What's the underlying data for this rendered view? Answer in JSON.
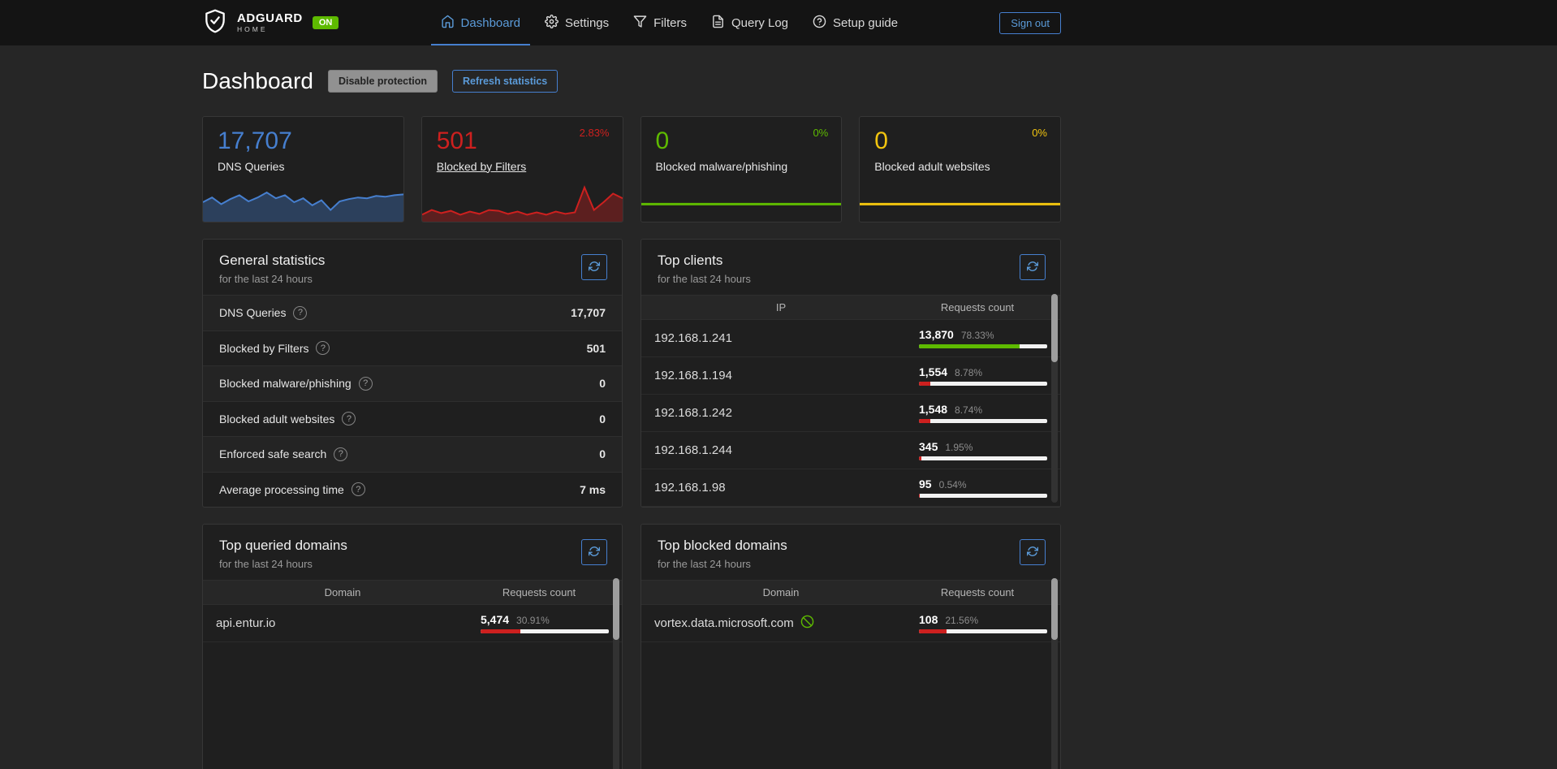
{
  "colors": {
    "blue": "#467fcf",
    "red": "#cd201f",
    "green": "#5eba00",
    "yellow": "#f1c40f"
  },
  "navbar": {
    "brand_name": "ADGUARD",
    "brand_sub": "HOME",
    "status_badge": "ON",
    "items": [
      {
        "label": "Dashboard"
      },
      {
        "label": "Settings"
      },
      {
        "label": "Filters"
      },
      {
        "label": "Query Log"
      },
      {
        "label": "Setup guide"
      }
    ],
    "signout_label": "Sign out"
  },
  "header": {
    "title": "Dashboard",
    "disable_protection_label": "Disable protection",
    "refresh_statistics_label": "Refresh statistics"
  },
  "stat_cards": [
    {
      "value": "17,707",
      "label": "DNS Queries",
      "percent": "",
      "color": "#467fcf",
      "spark": {
        "color": "#467fcf",
        "fill": true,
        "stroke": 2,
        "points": [
          0.5,
          0.62,
          0.45,
          0.58,
          0.68,
          0.52,
          0.62,
          0.75,
          0.6,
          0.68,
          0.5,
          0.6,
          0.42,
          0.55,
          0.3,
          0.52,
          0.58,
          0.62,
          0.6,
          0.66,
          0.64,
          0.68,
          0.7
        ]
      }
    },
    {
      "value": "501",
      "label": "Blocked by Filters",
      "percent": "2.83%",
      "color": "#cd201f",
      "spark": {
        "color": "#cd201f",
        "fill": true,
        "stroke": 2,
        "points": [
          0.18,
          0.3,
          0.22,
          0.28,
          0.18,
          0.26,
          0.2,
          0.3,
          0.28,
          0.2,
          0.26,
          0.18,
          0.24,
          0.18,
          0.26,
          0.2,
          0.24,
          0.88,
          0.3,
          0.5,
          0.72,
          0.6
        ]
      }
    },
    {
      "value": "0",
      "label": "Blocked malware/phishing",
      "percent": "0%",
      "color": "#5eba00",
      "spark": {
        "color": "#5eba00",
        "fill": false,
        "stroke": 3,
        "points": [
          0.45,
          0.45
        ]
      }
    },
    {
      "value": "0",
      "label": "Blocked adult websites",
      "percent": "0%",
      "color": "#f1c40f",
      "spark": {
        "color": "#f1c40f",
        "fill": false,
        "stroke": 3,
        "points": [
          0.45,
          0.45
        ]
      }
    }
  ],
  "general": {
    "title": "General statistics",
    "subtitle": "for the last 24 hours",
    "rows": [
      {
        "label": "DNS Queries",
        "value": "17,707"
      },
      {
        "label": "Blocked by Filters",
        "value": "501"
      },
      {
        "label": "Blocked malware/phishing",
        "value": "0"
      },
      {
        "label": "Blocked adult websites",
        "value": "0"
      },
      {
        "label": "Enforced safe search",
        "value": "0"
      },
      {
        "label": "Average processing time",
        "value": "7 ms"
      }
    ]
  },
  "top_clients": {
    "title": "Top clients",
    "subtitle": "for the last 24 hours",
    "columns": {
      "ip": "IP",
      "count": "Requests count"
    },
    "rows": [
      {
        "ip": "192.168.1.241",
        "count": "13,870",
        "percent": "78.33%",
        "pct": 78.33,
        "bar_color": "#5eba00"
      },
      {
        "ip": "192.168.1.194",
        "count": "1,554",
        "percent": "8.78%",
        "pct": 8.78,
        "bar_color": "#cd201f"
      },
      {
        "ip": "192.168.1.242",
        "count": "1,548",
        "percent": "8.74%",
        "pct": 8.74,
        "bar_color": "#cd201f"
      },
      {
        "ip": "192.168.1.244",
        "count": "345",
        "percent": "1.95%",
        "pct": 1.95,
        "bar_color": "#cd201f"
      },
      {
        "ip": "192.168.1.98",
        "count": "95",
        "percent": "0.54%",
        "pct": 0.54,
        "bar_color": "#cd201f"
      }
    ]
  },
  "top_queried": {
    "title": "Top queried domains",
    "subtitle": "for the last 24 hours",
    "columns": {
      "domain": "Domain",
      "count": "Requests count"
    },
    "rows": [
      {
        "domain": "api.entur.io",
        "count": "5,474",
        "percent": "30.91%",
        "pct": 30.91,
        "bar_color": "#cd201f"
      }
    ]
  },
  "top_blocked": {
    "title": "Top blocked domains",
    "subtitle": "for the last 24 hours",
    "columns": {
      "domain": "Domain",
      "count": "Requests count"
    },
    "rows": [
      {
        "domain": "vortex.data.microsoft.com",
        "count": "108",
        "percent": "21.56%",
        "pct": 21.56,
        "bar_color": "#cd201f"
      }
    ]
  }
}
